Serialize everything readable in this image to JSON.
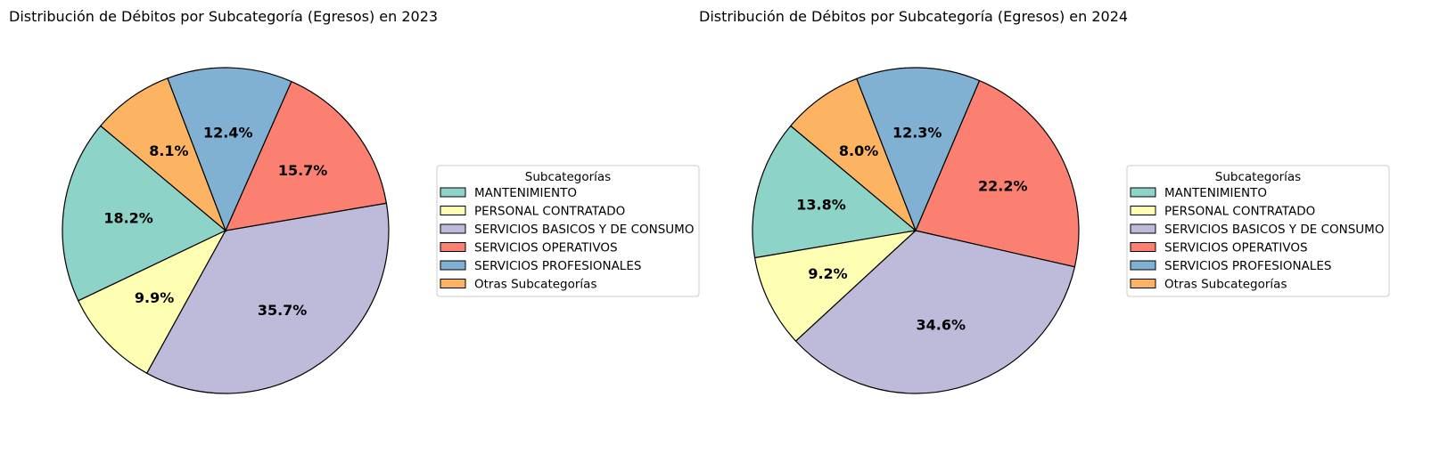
{
  "chart_data": [
    {
      "type": "pie",
      "title": "Distribución de Débitos por Subcategoría (Egresos) en 2023",
      "legend_title": "Subcategorías",
      "legend_position": "right",
      "categories": [
        "MANTENIMIENTO",
        "PERSONAL CONTRATADO",
        "SERVICIOS BASICOS Y DE CONSUMO",
        "SERVICIOS OPERATIVOS",
        "SERVICIOS PROFESIONALES",
        "Otras Subcategorías"
      ],
      "values": [
        18.2,
        9.9,
        35.7,
        15.7,
        12.4,
        8.1
      ],
      "labels": [
        "18.2%",
        "9.9%",
        "35.7%",
        "15.7%",
        "12.4%",
        "8.1%"
      ],
      "colors": [
        "#8dd3c7",
        "#ffffb3",
        "#bebada",
        "#fb8072",
        "#80b1d3",
        "#fdb462"
      ]
    },
    {
      "type": "pie",
      "title": "Distribución de Débitos por Subcategoría (Egresos) en 2024",
      "legend_title": "Subcategorías",
      "legend_position": "right",
      "categories": [
        "MANTENIMIENTO",
        "PERSONAL CONTRATADO",
        "SERVICIOS BASICOS Y DE CONSUMO",
        "SERVICIOS OPERATIVOS",
        "SERVICIOS PROFESIONALES",
        "Otras Subcategorías"
      ],
      "values": [
        13.8,
        9.2,
        34.6,
        22.2,
        12.3,
        8.0
      ],
      "labels": [
        "13.8%",
        "9.2%",
        "34.6%",
        "22.2%",
        "12.3%",
        "8.0%"
      ],
      "colors": [
        "#8dd3c7",
        "#ffffb3",
        "#bebada",
        "#fb8072",
        "#80b1d3",
        "#fdb462"
      ]
    }
  ]
}
